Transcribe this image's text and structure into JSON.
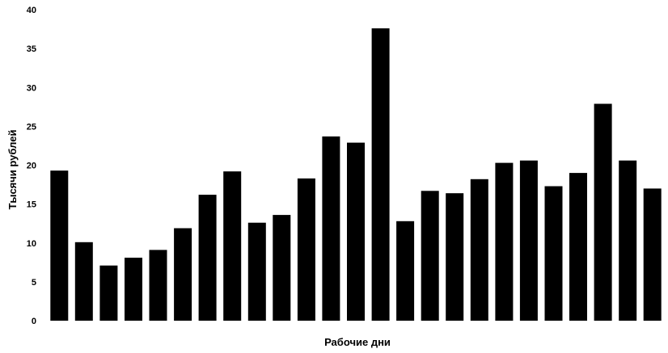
{
  "chart_data": {
    "type": "bar",
    "title": "",
    "xlabel": "Рабочие дни",
    "ylabel": "Тысячи рублей",
    "ylim": [
      0,
      40
    ],
    "yticks": [
      0,
      5,
      10,
      15,
      20,
      25,
      30,
      35,
      40
    ],
    "grid": false,
    "legend": "none",
    "bar_color": "#000000",
    "values": [
      19.3,
      10.1,
      7.1,
      8.1,
      9.1,
      11.9,
      16.2,
      19.2,
      12.6,
      13.6,
      18.3,
      23.7,
      22.9,
      37.6,
      12.8,
      16.7,
      16.4,
      18.2,
      20.3,
      20.6,
      17.3,
      19.0,
      27.9,
      20.6,
      17.0
    ]
  }
}
